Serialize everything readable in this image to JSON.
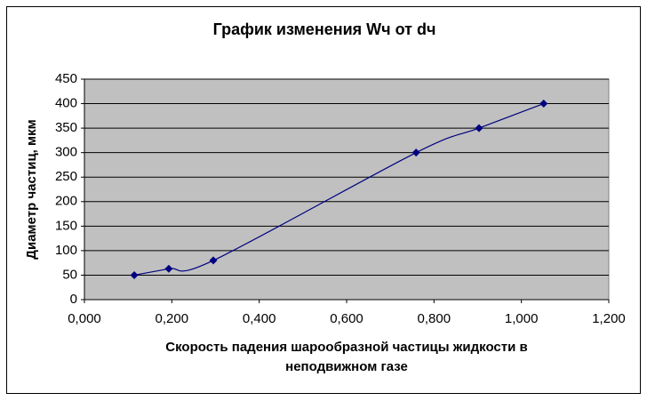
{
  "chart_data": {
    "type": "scatter",
    "title": "График изменения Wч от dч",
    "x_label": [
      "Скорость падения шарообразной частицы жидкости в",
      "неподвижном газе"
    ],
    "y_label": "Диаметр частиц, мкм",
    "x": [
      0.114,
      0.193,
      0.295,
      0.759,
      0.903,
      1.051
    ],
    "series": [
      {
        "color": "#000080",
        "values": [
          50,
          63,
          80,
          300,
          350,
          400
        ]
      }
    ],
    "xlim": [
      0,
      1.2
    ],
    "xticks": [
      {
        "value": 0,
        "label": "0,000"
      },
      {
        "value": 0.2,
        "label": "0,200"
      },
      {
        "value": 0.4,
        "label": "0,400"
      },
      {
        "value": 0.6,
        "label": "0,600"
      },
      {
        "value": 0.8,
        "label": "0,800"
      },
      {
        "value": 1.0,
        "label": "1,000"
      },
      {
        "value": 1.2,
        "label": "1,200"
      }
    ],
    "ylim": [
      0,
      450
    ],
    "yticks": [
      0,
      50,
      100,
      150,
      200,
      250,
      300,
      350,
      400,
      450
    ],
    "grid": true,
    "smooth": true,
    "plot_background": "#c0c0c0"
  }
}
